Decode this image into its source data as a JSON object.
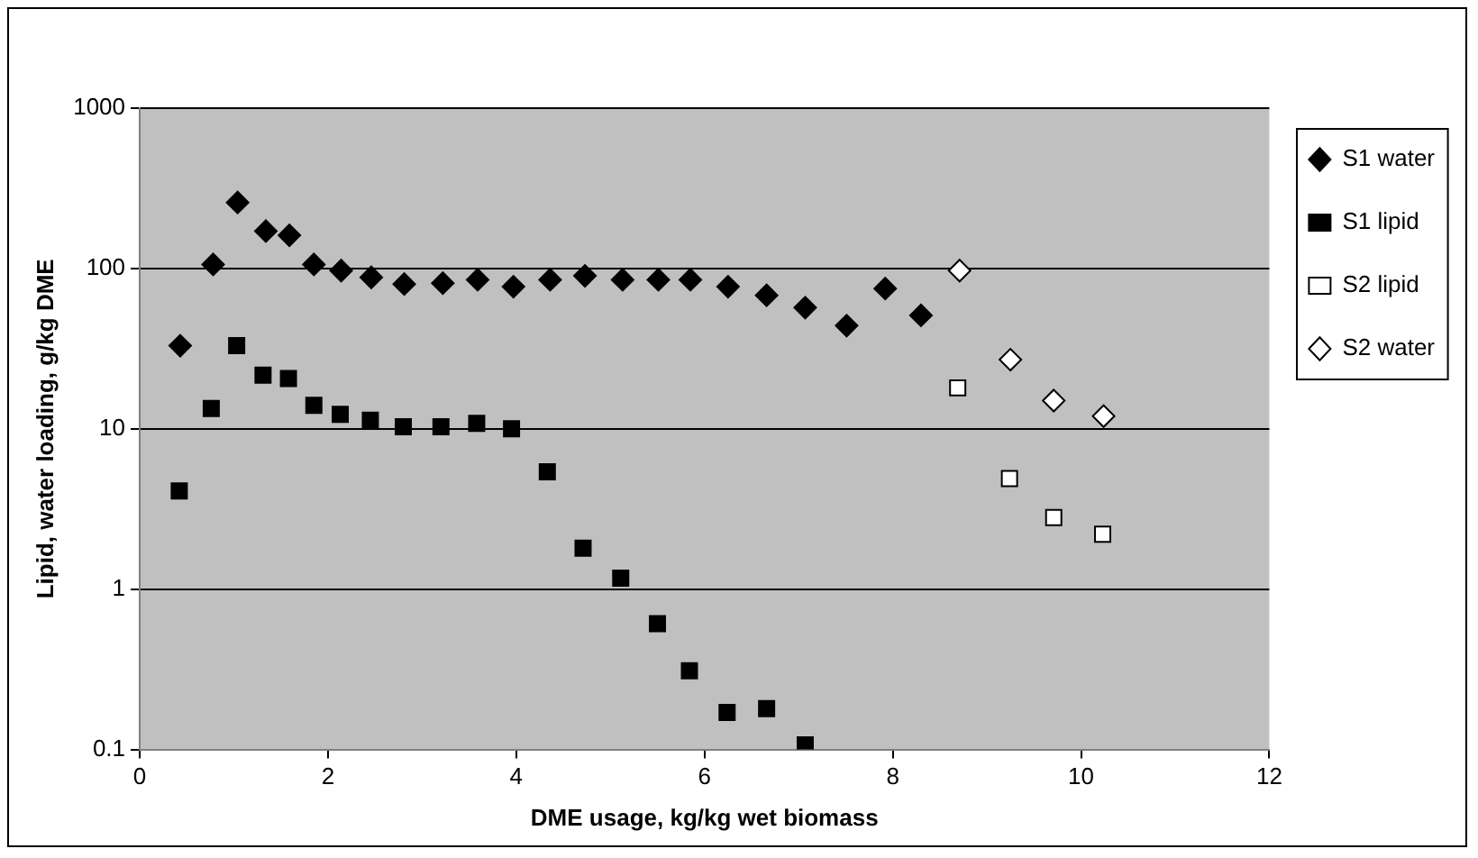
{
  "chart_data": {
    "type": "scatter",
    "xlabel": "DME usage, kg/kg wet biomass",
    "ylabel": "Lipid, water loading, g/kg DME",
    "log": "y",
    "grid": "y",
    "legend": "right",
    "xlim": [
      0,
      12
    ],
    "xticks": [
      0,
      2,
      4,
      6,
      8,
      10,
      12
    ],
    "ylim": [
      0.1,
      1000
    ],
    "yticks": [
      0.1,
      1,
      10,
      100,
      1000
    ],
    "series": [
      {
        "name": "S1 water",
        "color": "#000000",
        "marker": "diamond",
        "x": [
          0.43,
          0.78,
          1.04,
          1.34,
          1.59,
          1.85,
          2.14,
          2.46,
          2.81,
          3.22,
          3.59,
          3.97,
          4.36,
          4.73,
          5.13,
          5.51,
          5.85,
          6.25,
          6.66,
          7.07,
          7.51,
          7.92,
          8.3
        ],
        "values": [
          33,
          106,
          258,
          171,
          161,
          106,
          97,
          88,
          80,
          81,
          85,
          77,
          85,
          90,
          85,
          85,
          85,
          77,
          68,
          57,
          44,
          75,
          51
        ]
      },
      {
        "name": "S1 lipid",
        "color": "#000000",
        "marker": "square",
        "x": [
          0.42,
          0.76,
          1.03,
          1.31,
          1.58,
          1.85,
          2.13,
          2.45,
          2.8,
          3.2,
          3.58,
          3.95,
          4.33,
          4.71,
          5.11,
          5.5,
          5.84,
          6.24,
          6.66,
          7.07
        ],
        "values": [
          4.1,
          13.4,
          33,
          21.6,
          20.6,
          14,
          12.3,
          11.3,
          10.3,
          10.3,
          10.8,
          10,
          5.4,
          1.8,
          1.17,
          0.61,
          0.31,
          0.17,
          0.18,
          0.107
        ]
      },
      {
        "name": "S2 lipid",
        "color": "#ffffff",
        "marker": "square",
        "x": [
          8.69,
          9.24,
          9.71,
          10.23
        ],
        "values": [
          18,
          4.9,
          2.8,
          2.2
        ]
      },
      {
        "name": "S2 water",
        "color": "#ffffff",
        "marker": "diamond",
        "x": [
          8.71,
          9.25,
          9.71,
          10.24
        ],
        "values": [
          97,
          27,
          15,
          12
        ]
      }
    ]
  }
}
